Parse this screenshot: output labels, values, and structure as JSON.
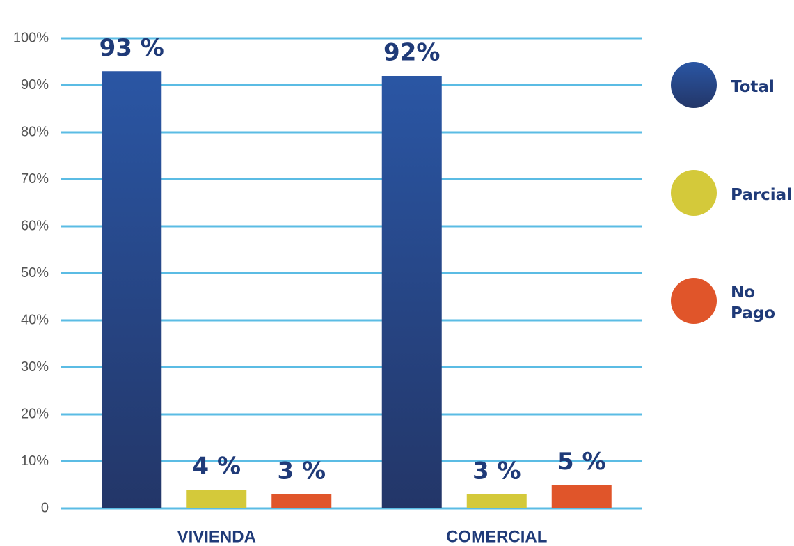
{
  "chart_data": {
    "type": "bar",
    "categories": [
      "VIVIENDA",
      "COMERCIAL"
    ],
    "series": [
      {
        "name": "Total",
        "color": "#24478f",
        "values": [
          93,
          92
        ],
        "value_labels": [
          "93 %",
          "92%"
        ]
      },
      {
        "name": "Parcial",
        "color": "#d4c93a",
        "values": [
          4,
          3
        ],
        "value_labels": [
          "4 %",
          "3 %"
        ]
      },
      {
        "name": "No Pago",
        "color": "#e0552a",
        "values": [
          3,
          5
        ],
        "value_labels": [
          "3 %",
          "5 %"
        ]
      }
    ],
    "ylim": [
      0,
      100
    ],
    "yticks": [
      0,
      {
        "value": 10,
        "label": "10%"
      },
      {
        "value": 20,
        "label": "20%"
      },
      {
        "value": 30,
        "label": "30%"
      },
      {
        "value": 40,
        "label": "40%"
      },
      {
        "value": 50,
        "label": "50%"
      },
      {
        "value": 60,
        "label": "60%"
      },
      {
        "value": 70,
        "label": "70%"
      },
      {
        "value": 80,
        "label": "80%"
      },
      {
        "value": 90,
        "label": "90%"
      },
      {
        "value": 100,
        "label": "100%"
      }
    ],
    "grid": true,
    "legend": "right"
  }
}
